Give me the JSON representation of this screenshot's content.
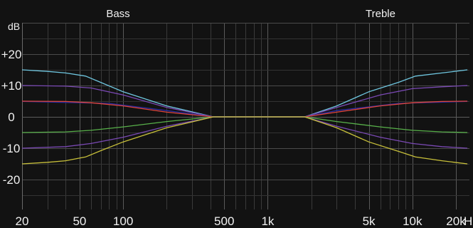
{
  "chart_data": {
    "type": "line",
    "title": "",
    "section_labels": [
      "Bass",
      "Treble"
    ],
    "y_unit": "dB",
    "x_unit": "Hz",
    "x_scale": "log",
    "xlim": [
      20,
      24000
    ],
    "ylim": [
      -30,
      30
    ],
    "y_ticks": [
      {
        "value": 20,
        "label": "+20"
      },
      {
        "value": 10,
        "label": "+10"
      },
      {
        "value": 0,
        "label": "0"
      },
      {
        "value": -10,
        "label": "-10"
      },
      {
        "value": -20,
        "label": "-20"
      }
    ],
    "x_ticks": [
      {
        "value": 20,
        "label": "20"
      },
      {
        "value": 50,
        "label": "50"
      },
      {
        "value": 100,
        "label": "100"
      },
      {
        "value": 500,
        "label": "500"
      },
      {
        "value": 1000,
        "label": "1k"
      },
      {
        "value": 5000,
        "label": "5k"
      },
      {
        "value": 10000,
        "label": "10k"
      },
      {
        "value": 20000,
        "label": "20k"
      }
    ],
    "grid": true,
    "series": [
      {
        "color": "#6fc6df",
        "points": [
          [
            20,
            15
          ],
          [
            30,
            14.5
          ],
          [
            40,
            14
          ],
          [
            55,
            13
          ],
          [
            70,
            11
          ],
          [
            100,
            8
          ],
          [
            200,
            3.5
          ],
          [
            420,
            0
          ],
          [
            1800,
            0
          ],
          [
            3000,
            3.5
          ],
          [
            5000,
            8
          ],
          [
            8000,
            11
          ],
          [
            10500,
            13
          ],
          [
            16000,
            14
          ],
          [
            24000,
            15
          ]
        ]
      },
      {
        "color": "#7a49b4",
        "points": [
          [
            20,
            10
          ],
          [
            40,
            9.8
          ],
          [
            60,
            9.2
          ],
          [
            100,
            7
          ],
          [
            200,
            3
          ],
          [
            420,
            0
          ],
          [
            1800,
            0
          ],
          [
            3000,
            3
          ],
          [
            6000,
            7
          ],
          [
            10000,
            9
          ],
          [
            16000,
            9.6
          ],
          [
            24000,
            10
          ]
        ]
      },
      {
        "color": "#2a2aa0",
        "points": [
          [
            20,
            4.9
          ],
          [
            80,
            4.3
          ],
          [
            200,
            2
          ],
          [
            420,
            0
          ],
          [
            1800,
            0
          ],
          [
            3000,
            2
          ],
          [
            8000,
            4.3
          ],
          [
            24000,
            4.9
          ]
        ]
      },
      {
        "color": "#e0463a",
        "points": [
          [
            20,
            5
          ],
          [
            40,
            4.9
          ],
          [
            60,
            4.5
          ],
          [
            100,
            3.5
          ],
          [
            200,
            1.5
          ],
          [
            420,
            0
          ],
          [
            1800,
            0
          ],
          [
            3000,
            1.5
          ],
          [
            6000,
            3.5
          ],
          [
            10000,
            4.5
          ],
          [
            16000,
            4.9
          ],
          [
            24000,
            5
          ]
        ]
      },
      {
        "color": "#58b04a",
        "points": [
          [
            20,
            -5
          ],
          [
            40,
            -4.8
          ],
          [
            60,
            -4.3
          ],
          [
            100,
            -3.2
          ],
          [
            200,
            -1.5
          ],
          [
            420,
            0
          ],
          [
            1800,
            0
          ],
          [
            3000,
            -1.5
          ],
          [
            6000,
            -3.2
          ],
          [
            10000,
            -4.3
          ],
          [
            16000,
            -4.8
          ],
          [
            24000,
            -5
          ]
        ]
      },
      {
        "color": "#7a49b4",
        "points": [
          [
            20,
            -10
          ],
          [
            40,
            -9.5
          ],
          [
            60,
            -8.5
          ],
          [
            100,
            -6.5
          ],
          [
            200,
            -3
          ],
          [
            420,
            0
          ],
          [
            1800,
            0
          ],
          [
            3000,
            -3
          ],
          [
            6000,
            -6.5
          ],
          [
            10000,
            -8.5
          ],
          [
            16000,
            -9.5
          ],
          [
            24000,
            -10
          ]
        ]
      },
      {
        "color": "#c8c03a",
        "points": [
          [
            20,
            -15
          ],
          [
            30,
            -14.5
          ],
          [
            40,
            -14
          ],
          [
            55,
            -12.8
          ],
          [
            70,
            -10.8
          ],
          [
            100,
            -8
          ],
          [
            200,
            -3.5
          ],
          [
            420,
            0
          ],
          [
            1800,
            0
          ],
          [
            3000,
            -3.5
          ],
          [
            5000,
            -8
          ],
          [
            8000,
            -11
          ],
          [
            10500,
            -12.8
          ],
          [
            16000,
            -14
          ],
          [
            24000,
            -15
          ]
        ]
      }
    ]
  }
}
